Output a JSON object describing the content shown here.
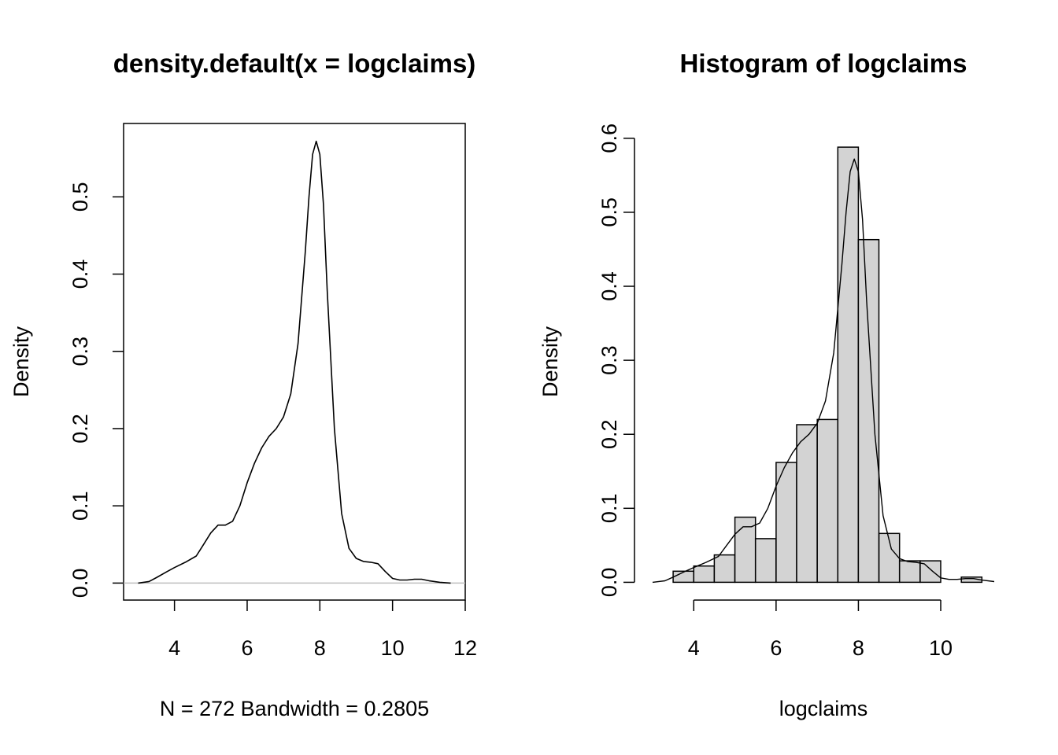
{
  "chart_data": [
    {
      "type": "line",
      "title": "density.default(x = logclaims)",
      "xlabel": "N = 272   Bandwidth = 0.2805",
      "ylabel": "Density",
      "xlim": [
        2.6,
        12.0
      ],
      "ylim": [
        -0.022,
        0.595
      ],
      "x_ticks": [
        "4",
        "6",
        "8",
        "10",
        "12"
      ],
      "y_ticks": [
        "0.0",
        "0.1",
        "0.2",
        "0.3",
        "0.4",
        "0.5"
      ],
      "box": true,
      "zero_line": true,
      "series": [
        {
          "x": [
            3.0,
            3.3,
            3.5,
            3.8,
            4.0,
            4.3,
            4.6,
            4.8,
            5.0,
            5.2,
            5.4,
            5.6,
            5.8,
            6.0,
            6.2,
            6.4,
            6.6,
            6.8,
            7.0,
            7.2,
            7.4,
            7.6,
            7.7,
            7.8,
            7.9,
            8.0,
            8.1,
            8.2,
            8.4,
            8.6,
            8.8,
            9.0,
            9.2,
            9.4,
            9.6,
            9.8,
            10.0,
            10.2,
            10.4,
            10.6,
            10.8,
            11.0,
            11.3,
            11.6
          ],
          "y": [
            0.0,
            0.002,
            0.007,
            0.015,
            0.02,
            0.027,
            0.035,
            0.05,
            0.065,
            0.075,
            0.075,
            0.08,
            0.1,
            0.13,
            0.155,
            0.175,
            0.19,
            0.2,
            0.215,
            0.245,
            0.31,
            0.43,
            0.5,
            0.555,
            0.572,
            0.555,
            0.49,
            0.38,
            0.2,
            0.09,
            0.045,
            0.032,
            0.028,
            0.027,
            0.025,
            0.015,
            0.006,
            0.004,
            0.004,
            0.005,
            0.005,
            0.003,
            0.001,
            0.0
          ]
        }
      ]
    },
    {
      "type": "bar",
      "title": "Histogram of logclaims",
      "xlabel": "logclaims",
      "ylabel": "Density",
      "xlim": [
        3.0,
        11.3
      ],
      "ylim": [
        -0.024,
        0.62
      ],
      "x_ticks": [
        "4",
        "6",
        "8",
        "10"
      ],
      "y_ticks": [
        "0.0",
        "0.1",
        "0.2",
        "0.3",
        "0.4",
        "0.5",
        "0.6"
      ],
      "bin_edges": [
        3.5,
        4.0,
        4.5,
        5.0,
        5.5,
        6.0,
        6.5,
        7.0,
        7.5,
        8.0,
        8.5,
        9.0,
        9.5,
        10.0,
        10.5,
        11.0
      ],
      "values": [
        0.015,
        0.022,
        0.037,
        0.088,
        0.059,
        0.162,
        0.213,
        0.22,
        0.588,
        0.463,
        0.066,
        0.029,
        0.029,
        0.0,
        0.007
      ],
      "bar_color": "#d3d3d3",
      "series": [
        {
          "x": [
            3.0,
            3.3,
            3.5,
            3.8,
            4.0,
            4.3,
            4.6,
            4.8,
            5.0,
            5.2,
            5.4,
            5.6,
            5.8,
            6.0,
            6.2,
            6.4,
            6.6,
            6.8,
            7.0,
            7.2,
            7.4,
            7.6,
            7.7,
            7.8,
            7.9,
            8.0,
            8.1,
            8.2,
            8.4,
            8.6,
            8.8,
            9.0,
            9.2,
            9.4,
            9.6,
            9.8,
            10.0,
            10.2,
            10.4,
            10.6,
            10.8,
            11.0,
            11.3
          ],
          "y": [
            0.0,
            0.002,
            0.007,
            0.015,
            0.02,
            0.027,
            0.035,
            0.05,
            0.065,
            0.075,
            0.075,
            0.08,
            0.1,
            0.13,
            0.155,
            0.175,
            0.19,
            0.2,
            0.215,
            0.245,
            0.31,
            0.43,
            0.5,
            0.555,
            0.572,
            0.555,
            0.49,
            0.38,
            0.2,
            0.09,
            0.045,
            0.032,
            0.028,
            0.027,
            0.025,
            0.015,
            0.006,
            0.004,
            0.004,
            0.005,
            0.005,
            0.003,
            0.001
          ]
        }
      ]
    }
  ]
}
